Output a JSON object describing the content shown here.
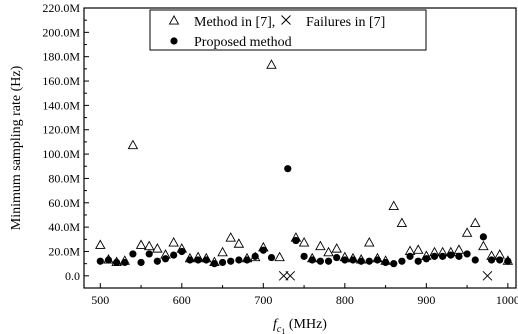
{
  "chart_data": {
    "type": "scatter",
    "xlabel_main": "f",
    "xlabel_sub": "c",
    "xlabel_subsub": "1",
    "xlabel_unit": " (MHz)",
    "ylabel": "Minimum sampling rate (Hz)",
    "xlim": [
      480,
      1010
    ],
    "ylim": [
      -10,
      220
    ],
    "x_ticks": [
      500,
      600,
      700,
      800,
      900,
      1000
    ],
    "y_ticks": [
      0,
      20,
      40,
      60,
      80,
      100,
      120,
      140,
      160,
      180,
      200,
      220
    ],
    "y_tick_labels": [
      "0.0",
      "20.0M",
      "40.0M",
      "60.0M",
      "80.0M",
      "100.0M",
      "120.0M",
      "140.0M",
      "160.0M",
      "180.0M",
      "200.0M",
      "220.0M"
    ],
    "grid": false,
    "legend_position": "top",
    "series": [
      {
        "name": "Method in [7],",
        "marker": "triangle-open",
        "points": [
          [
            500,
            25
          ],
          [
            510,
            13
          ],
          [
            520,
            11
          ],
          [
            530,
            12
          ],
          [
            540,
            107
          ],
          [
            550,
            25
          ],
          [
            560,
            24
          ],
          [
            570,
            22
          ],
          [
            580,
            17
          ],
          [
            590,
            27
          ],
          [
            600,
            22
          ],
          [
            610,
            14
          ],
          [
            620,
            15
          ],
          [
            630,
            14
          ],
          [
            640,
            11
          ],
          [
            650,
            19
          ],
          [
            660,
            31
          ],
          [
            670,
            26
          ],
          [
            680,
            14
          ],
          [
            690,
            15
          ],
          [
            700,
            23
          ],
          [
            710,
            173
          ],
          [
            720,
            15
          ],
          [
            740,
            31
          ],
          [
            750,
            27
          ],
          [
            760,
            14
          ],
          [
            770,
            24
          ],
          [
            780,
            19
          ],
          [
            790,
            22
          ],
          [
            800,
            15
          ],
          [
            810,
            14
          ],
          [
            820,
            13
          ],
          [
            830,
            27
          ],
          [
            840,
            14
          ],
          [
            850,
            12
          ],
          [
            860,
            57
          ],
          [
            870,
            43
          ],
          [
            880,
            20
          ],
          [
            890,
            21
          ],
          [
            900,
            16
          ],
          [
            910,
            19
          ],
          [
            920,
            19
          ],
          [
            930,
            19
          ],
          [
            940,
            21
          ],
          [
            950,
            35
          ],
          [
            960,
            43
          ],
          [
            970,
            24
          ],
          [
            980,
            16
          ],
          [
            990,
            17
          ],
          [
            1000,
            12
          ]
        ]
      },
      {
        "name": "Failures in [7]",
        "marker": "x",
        "points": [
          [
            725,
            0
          ],
          [
            733,
            0
          ],
          [
            975,
            0
          ]
        ]
      },
      {
        "name": "Proposed method",
        "marker": "circle-filled",
        "points": [
          [
            500,
            12
          ],
          [
            510,
            13
          ],
          [
            520,
            11
          ],
          [
            530,
            11
          ],
          [
            540,
            18
          ],
          [
            550,
            11
          ],
          [
            560,
            18
          ],
          [
            570,
            12
          ],
          [
            580,
            14
          ],
          [
            590,
            17
          ],
          [
            600,
            20
          ],
          [
            610,
            13
          ],
          [
            620,
            13
          ],
          [
            630,
            13
          ],
          [
            640,
            10
          ],
          [
            650,
            11
          ],
          [
            660,
            12
          ],
          [
            670,
            13
          ],
          [
            680,
            13
          ],
          [
            690,
            16
          ],
          [
            700,
            21
          ],
          [
            710,
            15
          ],
          [
            730,
            88
          ],
          [
            740,
            29
          ],
          [
            750,
            16
          ],
          [
            760,
            13
          ],
          [
            770,
            12
          ],
          [
            780,
            12
          ],
          [
            790,
            15
          ],
          [
            800,
            13
          ],
          [
            810,
            13
          ],
          [
            820,
            12
          ],
          [
            830,
            12
          ],
          [
            840,
            13
          ],
          [
            850,
            11
          ],
          [
            860,
            10
          ],
          [
            870,
            12
          ],
          [
            880,
            16
          ],
          [
            890,
            12
          ],
          [
            900,
            14
          ],
          [
            910,
            16
          ],
          [
            920,
            16
          ],
          [
            930,
            17
          ],
          [
            940,
            16
          ],
          [
            950,
            18
          ],
          [
            960,
            13
          ],
          [
            970,
            32
          ],
          [
            980,
            13
          ],
          [
            990,
            13
          ],
          [
            1000,
            12
          ]
        ]
      }
    ]
  }
}
